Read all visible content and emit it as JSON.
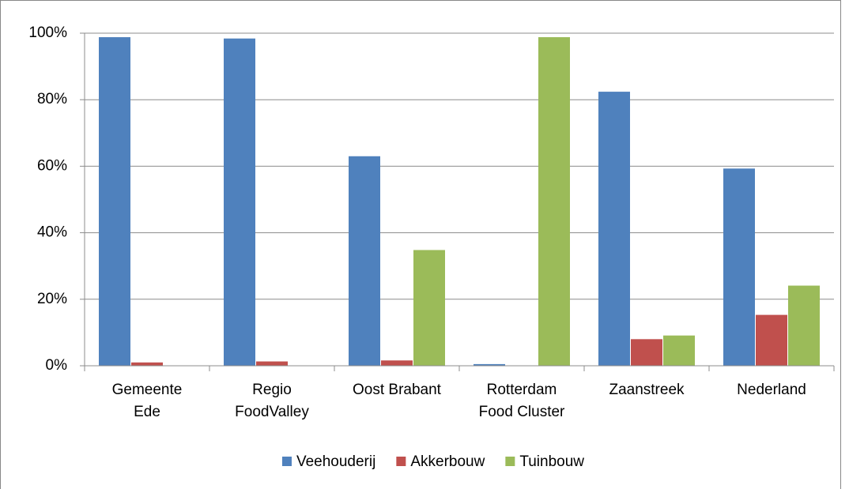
{
  "chart_data": {
    "type": "bar",
    "categories": [
      "Gemeente\nEde",
      "Regio\nFoodValley",
      "Oost Brabant",
      "Rotterdam\nFood Cluster",
      "Zaanstreek",
      "Nederland"
    ],
    "series": [
      {
        "name": "Veehouderij",
        "color": "#4f81bd",
        "values": [
          98.8,
          98.4,
          63,
          0.5,
          82.4,
          59.3
        ]
      },
      {
        "name": "Akkerbouw",
        "color": "#c0504d",
        "values": [
          1,
          1.3,
          1.6,
          0,
          8,
          15.3
        ]
      },
      {
        "name": "Tuinbouw",
        "color": "#9bbb59",
        "values": [
          0,
          0,
          34.8,
          98.8,
          9.1,
          24.1
        ]
      }
    ],
    "ylim": [
      0,
      100
    ],
    "yticks": [
      {
        "value": 0,
        "label": "0%"
      },
      {
        "value": 20,
        "label": "20%"
      },
      {
        "value": 40,
        "label": "40%"
      },
      {
        "value": 60,
        "label": "60%"
      },
      {
        "value": 80,
        "label": "80%"
      },
      {
        "value": 100,
        "label": "100%"
      }
    ],
    "grid": true,
    "legend": "bottom"
  }
}
